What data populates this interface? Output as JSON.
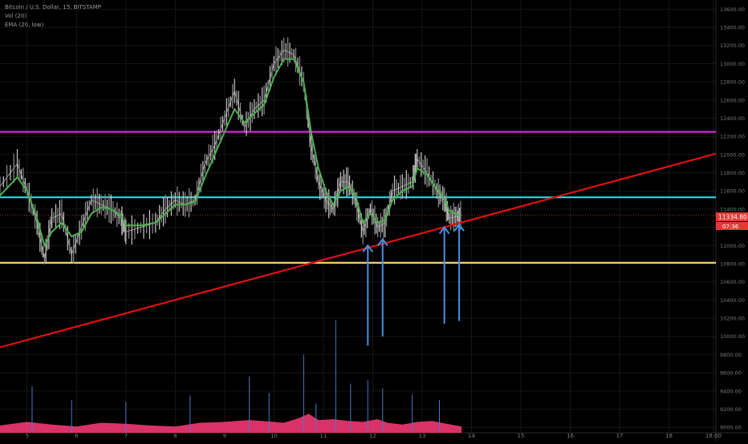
{
  "header": {
    "symbol": "Bitcoin / U.S. Dollar, 15, BITSTAMP",
    "volume_indicator": "Vol (20)",
    "ema_indicator": "EMA (20, low)"
  },
  "price_scale": {
    "current_price_label": "11334.80",
    "countdown_label": "07:36"
  },
  "colors": {
    "background": "#000000",
    "grid": "#161616",
    "axis_text": "#7a7a7a",
    "candle_up": "#c8c8c8",
    "candle_down": "#8c8c8c",
    "ema": "#4caf50",
    "resistance_magenta": "#e020e0",
    "support_cyan": "#20e0e0",
    "support_yellow": "#f0d070",
    "trendline": "#e01010",
    "arrows": "#4a90e2",
    "volume_area": "#ff3b7a",
    "price_tag": "#e53935"
  },
  "chart_data": {
    "type": "candlestick",
    "title": "Bitcoin / U.S. Dollar, 15, BITSTAMP",
    "y_axis": {
      "ticks": [
        "13600.00",
        "13400.00",
        "13200.00",
        "13000.00",
        "12800.00",
        "12600.00",
        "12400.00",
        "12200.00",
        "12000.00",
        "11800.00",
        "11600.00",
        "11400.00",
        "11200.00",
        "11000.00",
        "10800.00",
        "10600.00",
        "10400.00",
        "10200.00",
        "10000.00",
        "9800.00",
        "9600.00",
        "9400.00",
        "9200.00",
        "9000.00"
      ],
      "range": [
        8940,
        13700
      ]
    },
    "x_axis": {
      "ticks": [
        "5",
        "6",
        "7",
        "8",
        "9",
        "10",
        "11",
        "12",
        "13",
        "14",
        "15",
        "16",
        "17",
        "18",
        "18:00"
      ],
      "tick_values": [
        5,
        6,
        7,
        8,
        9,
        10,
        11,
        12,
        13,
        14,
        15,
        16,
        17,
        18,
        18.9
      ],
      "range": [
        4.45,
        18.95
      ]
    },
    "price_path": [
      [
        4.45,
        11650
      ],
      [
        4.8,
        11900
      ],
      [
        5.0,
        11600
      ],
      [
        5.2,
        11250
      ],
      [
        5.35,
        10850
      ],
      [
        5.5,
        11300
      ],
      [
        5.7,
        11350
      ],
      [
        5.9,
        10900
      ],
      [
        6.1,
        11200
      ],
      [
        6.3,
        11500
      ],
      [
        6.5,
        11450
      ],
      [
        6.7,
        11400
      ],
      [
        6.9,
        11300
      ],
      [
        7.0,
        11150
      ],
      [
        7.3,
        11200
      ],
      [
        7.6,
        11250
      ],
      [
        7.8,
        11400
      ],
      [
        8.0,
        11500
      ],
      [
        8.2,
        11450
      ],
      [
        8.4,
        11500
      ],
      [
        8.6,
        11900
      ],
      [
        8.8,
        12100
      ],
      [
        9.0,
        12400
      ],
      [
        9.2,
        12700
      ],
      [
        9.4,
        12300
      ],
      [
        9.6,
        12500
      ],
      [
        9.8,
        12600
      ],
      [
        10.0,
        13000
      ],
      [
        10.2,
        13150
      ],
      [
        10.4,
        13100
      ],
      [
        10.6,
        12800
      ],
      [
        10.75,
        12100
      ],
      [
        10.9,
        11700
      ],
      [
        11.05,
        11500
      ],
      [
        11.2,
        11400
      ],
      [
        11.35,
        11700
      ],
      [
        11.5,
        11700
      ],
      [
        11.65,
        11500
      ],
      [
        11.8,
        11150
      ],
      [
        11.95,
        11400
      ],
      [
        12.1,
        11200
      ],
      [
        12.25,
        11250
      ],
      [
        12.4,
        11600
      ],
      [
        12.6,
        11650
      ],
      [
        12.8,
        11700
      ],
      [
        12.9,
        11950
      ],
      [
        13.1,
        11800
      ],
      [
        13.3,
        11600
      ],
      [
        13.45,
        11500
      ],
      [
        13.55,
        11300
      ],
      [
        13.7,
        11320
      ],
      [
        13.8,
        11334.8
      ]
    ],
    "ema_path": [
      [
        4.45,
        11550
      ],
      [
        4.8,
        11750
      ],
      [
        5.0,
        11600
      ],
      [
        5.2,
        11300
      ],
      [
        5.35,
        11000
      ],
      [
        5.5,
        11150
      ],
      [
        5.7,
        11250
      ],
      [
        5.9,
        11100
      ],
      [
        6.1,
        11150
      ],
      [
        6.3,
        11350
      ],
      [
        6.5,
        11420
      ],
      [
        6.7,
        11400
      ],
      [
        6.9,
        11330
      ],
      [
        7.0,
        11220
      ],
      [
        7.3,
        11220
      ],
      [
        7.6,
        11250
      ],
      [
        7.8,
        11350
      ],
      [
        8.0,
        11450
      ],
      [
        8.2,
        11450
      ],
      [
        8.4,
        11480
      ],
      [
        8.6,
        11750
      ],
      [
        8.8,
        12000
      ],
      [
        9.0,
        12250
      ],
      [
        9.2,
        12500
      ],
      [
        9.4,
        12350
      ],
      [
        9.6,
        12450
      ],
      [
        9.8,
        12550
      ],
      [
        10.0,
        12850
      ],
      [
        10.2,
        13050
      ],
      [
        10.4,
        13050
      ],
      [
        10.6,
        12800
      ],
      [
        10.75,
        12250
      ],
      [
        10.9,
        11850
      ],
      [
        11.05,
        11600
      ],
      [
        11.2,
        11450
      ],
      [
        11.35,
        11600
      ],
      [
        11.5,
        11650
      ],
      [
        11.65,
        11550
      ],
      [
        11.8,
        11250
      ],
      [
        11.95,
        11350
      ],
      [
        12.1,
        11250
      ],
      [
        12.25,
        11280
      ],
      [
        12.4,
        11500
      ],
      [
        12.6,
        11600
      ],
      [
        12.8,
        11650
      ],
      [
        12.9,
        11850
      ],
      [
        13.1,
        11780
      ],
      [
        13.3,
        11620
      ],
      [
        13.45,
        11520
      ],
      [
        13.55,
        11380
      ],
      [
        13.7,
        11340
      ],
      [
        13.8,
        11330
      ]
    ],
    "horizontal_levels": [
      {
        "name": "resistance",
        "value": 12250,
        "color": "#e020e0"
      },
      {
        "name": "support-mid",
        "value": 11530,
        "color": "#20e0e0"
      },
      {
        "name": "support-low",
        "value": 10810,
        "color": "#f0d070"
      },
      {
        "name": "last-price",
        "value": 11334.8,
        "color": "#b03030",
        "dotted": true
      }
    ],
    "trendline": {
      "from": [
        4.45,
        9880
      ],
      "to": [
        18.95,
        12010
      ],
      "color": "#e01010"
    },
    "arrows": [
      {
        "x": 11.9,
        "y_tail": 9900,
        "y_head": 11000
      },
      {
        "x": 12.2,
        "y_tail": 10000,
        "y_head": 11070
      },
      {
        "x": 13.45,
        "y_tail": 10140,
        "y_head": 11200
      },
      {
        "x": 13.75,
        "y_tail": 10170,
        "y_head": 11230
      }
    ],
    "volume_envelope": [
      [
        4.45,
        9020
      ],
      [
        5.0,
        9060
      ],
      [
        5.5,
        9030
      ],
      [
        6.0,
        9010
      ],
      [
        6.5,
        9050
      ],
      [
        7.0,
        9040
      ],
      [
        7.5,
        9020
      ],
      [
        8.0,
        9010
      ],
      [
        8.5,
        9050
      ],
      [
        9.0,
        9060
      ],
      [
        9.5,
        9080
      ],
      [
        10.0,
        9060
      ],
      [
        10.2,
        9050
      ],
      [
        10.5,
        9100
      ],
      [
        10.7,
        9150
      ],
      [
        10.9,
        9080
      ],
      [
        11.2,
        9090
      ],
      [
        11.5,
        9070
      ],
      [
        11.8,
        9060
      ],
      [
        12.1,
        9090
      ],
      [
        12.3,
        9050
      ],
      [
        12.6,
        9030
      ],
      [
        12.9,
        9060
      ],
      [
        13.2,
        9070
      ],
      [
        13.5,
        9040
      ],
      [
        13.8,
        9010
      ]
    ],
    "volume_spikes": [
      [
        5.1,
        9450
      ],
      [
        5.9,
        9300
      ],
      [
        7.0,
        9280
      ],
      [
        8.3,
        9350
      ],
      [
        9.5,
        9560
      ],
      [
        9.9,
        9380
      ],
      [
        10.6,
        9800
      ],
      [
        10.85,
        9260
      ],
      [
        11.25,
        10180
      ],
      [
        11.55,
        9480
      ],
      [
        11.9,
        9520
      ],
      [
        12.2,
        9430
      ],
      [
        12.8,
        9360
      ],
      [
        13.35,
        9300
      ]
    ],
    "grid": true,
    "legend": "top-left"
  }
}
